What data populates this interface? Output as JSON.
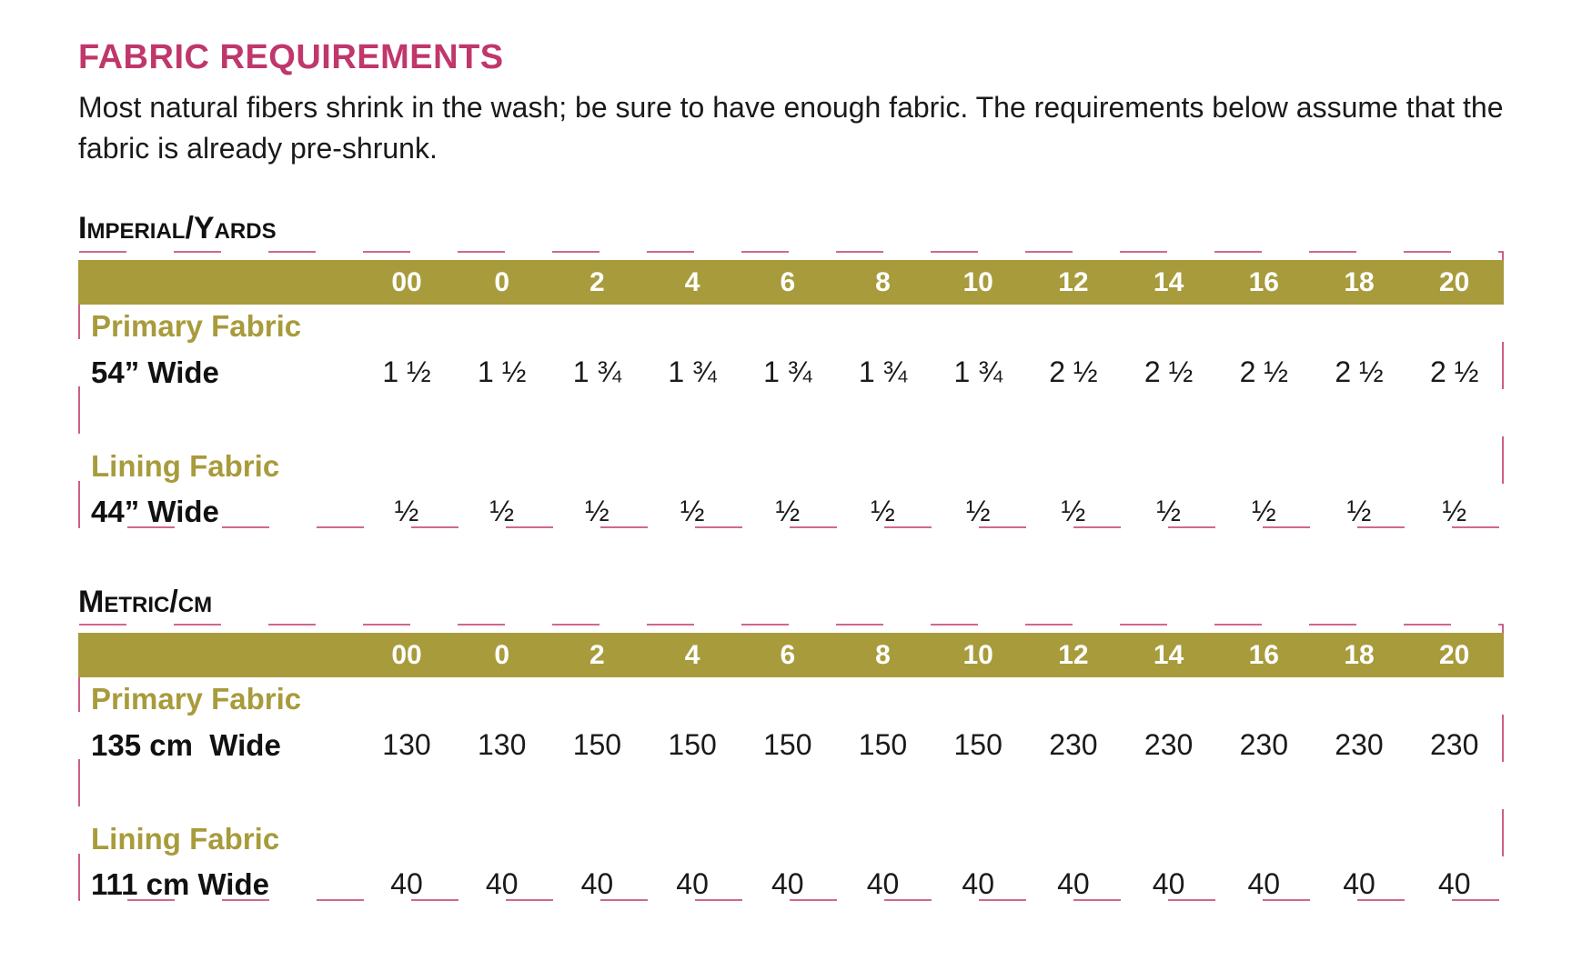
{
  "page": {
    "title": "FABRIC REQUIREMENTS",
    "intro": "Most natural fibers shrink in the wash; be sure to have enough fabric. The requirements below assume that the fabric is already pre-shrunk."
  },
  "colors": {
    "title": "#c0376c",
    "header_band": "#a89b3c",
    "fabric_label": "#a89b3c",
    "dash_border": "#c0376c"
  },
  "tables": [
    {
      "title": "Imperial/Yards",
      "sizes": [
        "00",
        "0",
        "2",
        "4",
        "6",
        "8",
        "10",
        "12",
        "14",
        "16",
        "18",
        "20"
      ],
      "rows": [
        {
          "fabric": "Primary Fabric",
          "width": "54” Wide",
          "values": [
            "1 ½",
            "1 ½",
            "1 ¾",
            "1 ¾",
            "1 ¾",
            "1 ¾",
            "1 ¾",
            "2 ½",
            "2 ½",
            "2 ½",
            "2 ½",
            "2 ½"
          ]
        },
        {
          "fabric": "Lining Fabric",
          "width": "44” Wide",
          "values": [
            "½",
            "½",
            "½",
            "½",
            "½",
            "½",
            "½",
            "½",
            "½",
            "½",
            "½",
            "½"
          ]
        }
      ]
    },
    {
      "title": "Metric/cm",
      "sizes": [
        "00",
        "0",
        "2",
        "4",
        "6",
        "8",
        "10",
        "12",
        "14",
        "16",
        "18",
        "20"
      ],
      "rows": [
        {
          "fabric": "Primary Fabric",
          "width": "135 cm  Wide",
          "values": [
            "130",
            "130",
            "150",
            "150",
            "150",
            "150",
            "150",
            "230",
            "230",
            "230",
            "230",
            "230"
          ]
        },
        {
          "fabric": "Lining Fabric",
          "width": "111 cm Wide",
          "values": [
            "40",
            "40",
            "40",
            "40",
            "40",
            "40",
            "40",
            "40",
            "40",
            "40",
            "40",
            "40"
          ]
        }
      ]
    }
  ]
}
